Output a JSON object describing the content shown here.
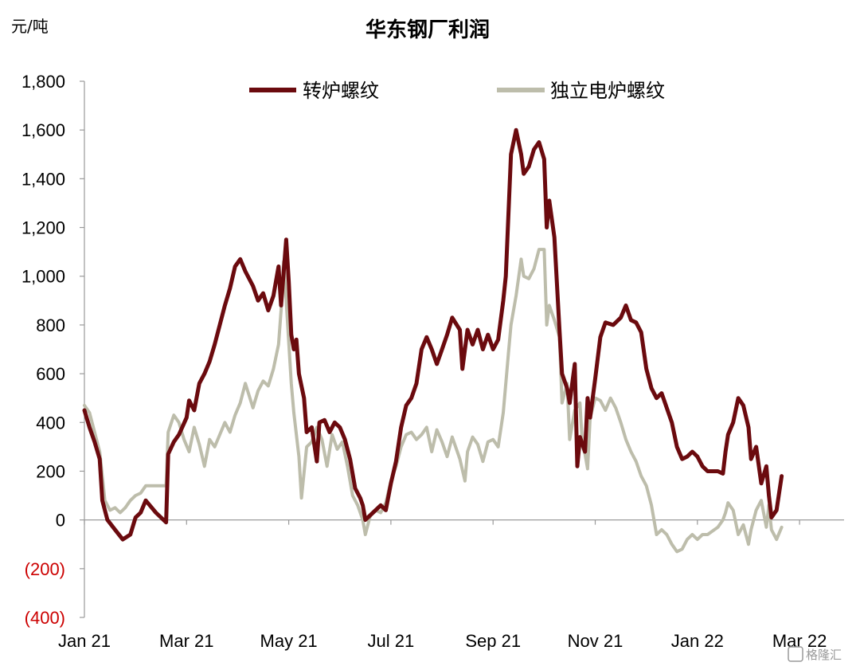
{
  "chart_data": {
    "type": "line",
    "title": "华东钢厂利润",
    "unit_label": "元/吨",
    "ylim": [
      -400,
      1800
    ],
    "yticks": [
      {
        "value": 1800,
        "label": "1,800"
      },
      {
        "value": 1600,
        "label": "1,600"
      },
      {
        "value": 1400,
        "label": "1,400"
      },
      {
        "value": 1200,
        "label": "1,200"
      },
      {
        "value": 1000,
        "label": "1,000"
      },
      {
        "value": 800,
        "label": "800"
      },
      {
        "value": 600,
        "label": "600"
      },
      {
        "value": 400,
        "label": "400"
      },
      {
        "value": 200,
        "label": "200"
      },
      {
        "value": 0,
        "label": "0"
      },
      {
        "value": -200,
        "label": "(200)"
      },
      {
        "value": -400,
        "label": "(400)"
      }
    ],
    "xticks": [
      "Jan 21",
      "Mar 21",
      "May 21",
      "Jul 21",
      "Sep 21",
      "Nov 21",
      "Jan 22",
      "Mar 22"
    ],
    "legend_position": "top",
    "series": [
      {
        "name": "转炉螺纹",
        "color": "#6b0a0e",
        "points": [
          [
            0.0,
            450
          ],
          [
            0.1,
            380
          ],
          [
            0.2,
            320
          ],
          [
            0.3,
            250
          ],
          [
            0.35,
            80
          ],
          [
            0.45,
            0
          ],
          [
            0.6,
            -40
          ],
          [
            0.75,
            -80
          ],
          [
            0.9,
            -60
          ],
          [
            1.0,
            10
          ],
          [
            1.1,
            30
          ],
          [
            1.2,
            80
          ],
          [
            1.4,
            30
          ],
          [
            1.6,
            -10
          ],
          [
            1.64,
            270
          ],
          [
            1.75,
            320
          ],
          [
            1.85,
            350
          ],
          [
            2.0,
            420
          ],
          [
            2.05,
            490
          ],
          [
            2.15,
            450
          ],
          [
            2.25,
            560
          ],
          [
            2.35,
            600
          ],
          [
            2.45,
            650
          ],
          [
            2.55,
            720
          ],
          [
            2.65,
            800
          ],
          [
            2.75,
            880
          ],
          [
            2.85,
            950
          ],
          [
            2.95,
            1040
          ],
          [
            3.05,
            1070
          ],
          [
            3.15,
            1020
          ],
          [
            3.3,
            960
          ],
          [
            3.4,
            900
          ],
          [
            3.5,
            930
          ],
          [
            3.6,
            860
          ],
          [
            3.7,
            920
          ],
          [
            3.8,
            1040
          ],
          [
            3.85,
            880
          ],
          [
            3.95,
            1150
          ],
          [
            4.0,
            980
          ],
          [
            4.05,
            760
          ],
          [
            4.1,
            700
          ],
          [
            4.15,
            740
          ],
          [
            4.2,
            600
          ],
          [
            4.3,
            500
          ],
          [
            4.35,
            360
          ],
          [
            4.45,
            380
          ],
          [
            4.55,
            240
          ],
          [
            4.6,
            400
          ],
          [
            4.7,
            410
          ],
          [
            4.8,
            360
          ],
          [
            4.9,
            400
          ],
          [
            5.0,
            380
          ],
          [
            5.1,
            330
          ],
          [
            5.2,
            250
          ],
          [
            5.3,
            130
          ],
          [
            5.4,
            90
          ],
          [
            5.45,
            60
          ],
          [
            5.5,
            0
          ],
          [
            5.65,
            30
          ],
          [
            5.8,
            60
          ],
          [
            5.9,
            40
          ],
          [
            6.0,
            150
          ],
          [
            6.1,
            240
          ],
          [
            6.2,
            380
          ],
          [
            6.3,
            470
          ],
          [
            6.4,
            500
          ],
          [
            6.5,
            560
          ],
          [
            6.6,
            700
          ],
          [
            6.7,
            750
          ],
          [
            6.8,
            700
          ],
          [
            6.9,
            640
          ],
          [
            7.0,
            700
          ],
          [
            7.1,
            760
          ],
          [
            7.2,
            830
          ],
          [
            7.35,
            780
          ],
          [
            7.4,
            620
          ],
          [
            7.5,
            780
          ],
          [
            7.6,
            720
          ],
          [
            7.7,
            780
          ],
          [
            7.8,
            700
          ],
          [
            7.9,
            760
          ],
          [
            8.0,
            700
          ],
          [
            8.1,
            740
          ],
          [
            8.2,
            900
          ],
          [
            8.25,
            1000
          ],
          [
            8.35,
            1500
          ],
          [
            8.45,
            1600
          ],
          [
            8.55,
            1500
          ],
          [
            8.6,
            1420
          ],
          [
            8.7,
            1450
          ],
          [
            8.8,
            1520
          ],
          [
            8.9,
            1550
          ],
          [
            9.0,
            1480
          ],
          [
            9.05,
            1200
          ],
          [
            9.1,
            1310
          ],
          [
            9.2,
            1160
          ],
          [
            9.3,
            780
          ],
          [
            9.35,
            600
          ],
          [
            9.45,
            540
          ],
          [
            9.5,
            480
          ],
          [
            9.6,
            640
          ],
          [
            9.65,
            220
          ],
          [
            9.7,
            340
          ],
          [
            9.8,
            280
          ],
          [
            9.85,
            500
          ],
          [
            9.9,
            420
          ],
          [
            10.0,
            580
          ],
          [
            10.1,
            750
          ],
          [
            10.2,
            810
          ],
          [
            10.35,
            800
          ],
          [
            10.5,
            830
          ],
          [
            10.6,
            880
          ],
          [
            10.7,
            820
          ],
          [
            10.8,
            810
          ],
          [
            10.9,
            770
          ],
          [
            11.0,
            620
          ],
          [
            11.1,
            540
          ],
          [
            11.2,
            500
          ],
          [
            11.3,
            520
          ],
          [
            11.4,
            460
          ],
          [
            11.5,
            400
          ],
          [
            11.6,
            300
          ],
          [
            11.7,
            250
          ],
          [
            11.8,
            260
          ],
          [
            11.9,
            280
          ],
          [
            12.0,
            260
          ],
          [
            12.1,
            220
          ],
          [
            12.2,
            200
          ],
          [
            12.4,
            200
          ],
          [
            12.5,
            190
          ],
          [
            12.55,
            280
          ],
          [
            12.6,
            350
          ],
          [
            12.7,
            400
          ],
          [
            12.8,
            500
          ],
          [
            12.9,
            470
          ],
          [
            13.0,
            380
          ],
          [
            13.05,
            250
          ],
          [
            13.15,
            300
          ],
          [
            13.25,
            150
          ],
          [
            13.35,
            220
          ],
          [
            13.4,
            100
          ],
          [
            13.45,
            10
          ],
          [
            13.55,
            40
          ],
          [
            13.65,
            180
          ]
        ]
      },
      {
        "name": "独立电炉螺纹",
        "color": "#bdbdab",
        "points": [
          [
            0.0,
            470
          ],
          [
            0.1,
            440
          ],
          [
            0.2,
            360
          ],
          [
            0.3,
            280
          ],
          [
            0.4,
            80
          ],
          [
            0.5,
            40
          ],
          [
            0.6,
            50
          ],
          [
            0.7,
            30
          ],
          [
            0.8,
            50
          ],
          [
            0.9,
            80
          ],
          [
            1.0,
            100
          ],
          [
            1.1,
            110
          ],
          [
            1.2,
            140
          ],
          [
            1.4,
            140
          ],
          [
            1.6,
            140
          ],
          [
            1.64,
            360
          ],
          [
            1.75,
            430
          ],
          [
            1.85,
            400
          ],
          [
            1.95,
            330
          ],
          [
            2.05,
            280
          ],
          [
            2.15,
            380
          ],
          [
            2.25,
            310
          ],
          [
            2.35,
            220
          ],
          [
            2.45,
            330
          ],
          [
            2.55,
            300
          ],
          [
            2.65,
            350
          ],
          [
            2.75,
            400
          ],
          [
            2.85,
            360
          ],
          [
            2.95,
            430
          ],
          [
            3.05,
            480
          ],
          [
            3.15,
            560
          ],
          [
            3.3,
            460
          ],
          [
            3.4,
            530
          ],
          [
            3.5,
            570
          ],
          [
            3.6,
            550
          ],
          [
            3.7,
            620
          ],
          [
            3.8,
            720
          ],
          [
            3.85,
            860
          ],
          [
            3.9,
            1060
          ],
          [
            3.95,
            900
          ],
          [
            4.05,
            560
          ],
          [
            4.1,
            440
          ],
          [
            4.2,
            260
          ],
          [
            4.25,
            90
          ],
          [
            4.35,
            300
          ],
          [
            4.45,
            320
          ],
          [
            4.55,
            380
          ],
          [
            4.65,
            330
          ],
          [
            4.75,
            220
          ],
          [
            4.85,
            350
          ],
          [
            4.95,
            290
          ],
          [
            5.05,
            320
          ],
          [
            5.15,
            220
          ],
          [
            5.25,
            100
          ],
          [
            5.35,
            60
          ],
          [
            5.45,
            0
          ],
          [
            5.5,
            -60
          ],
          [
            5.6,
            20
          ],
          [
            5.7,
            40
          ],
          [
            5.8,
            30
          ],
          [
            5.9,
            70
          ],
          [
            6.0,
            160
          ],
          [
            6.1,
            220
          ],
          [
            6.2,
            300
          ],
          [
            6.3,
            350
          ],
          [
            6.4,
            360
          ],
          [
            6.5,
            330
          ],
          [
            6.6,
            350
          ],
          [
            6.7,
            380
          ],
          [
            6.8,
            280
          ],
          [
            6.9,
            370
          ],
          [
            7.0,
            320
          ],
          [
            7.1,
            260
          ],
          [
            7.2,
            340
          ],
          [
            7.35,
            250
          ],
          [
            7.45,
            160
          ],
          [
            7.5,
            280
          ],
          [
            7.6,
            340
          ],
          [
            7.7,
            310
          ],
          [
            7.8,
            240
          ],
          [
            7.9,
            320
          ],
          [
            8.0,
            330
          ],
          [
            8.1,
            300
          ],
          [
            8.2,
            440
          ],
          [
            8.3,
            680
          ],
          [
            8.35,
            800
          ],
          [
            8.45,
            920
          ],
          [
            8.55,
            1070
          ],
          [
            8.6,
            1000
          ],
          [
            8.7,
            990
          ],
          [
            8.8,
            1030
          ],
          [
            8.9,
            1110
          ],
          [
            9.0,
            1110
          ],
          [
            9.05,
            800
          ],
          [
            9.1,
            880
          ],
          [
            9.2,
            820
          ],
          [
            9.3,
            750
          ],
          [
            9.35,
            480
          ],
          [
            9.45,
            560
          ],
          [
            9.5,
            330
          ],
          [
            9.6,
            450
          ],
          [
            9.7,
            480
          ],
          [
            9.75,
            300
          ],
          [
            9.8,
            270
          ],
          [
            9.85,
            210
          ],
          [
            9.9,
            420
          ],
          [
            10.0,
            500
          ],
          [
            10.1,
            490
          ],
          [
            10.2,
            450
          ],
          [
            10.3,
            500
          ],
          [
            10.4,
            460
          ],
          [
            10.5,
            400
          ],
          [
            10.6,
            330
          ],
          [
            10.7,
            280
          ],
          [
            10.8,
            240
          ],
          [
            10.9,
            180
          ],
          [
            11.0,
            140
          ],
          [
            11.1,
            60
          ],
          [
            11.2,
            -60
          ],
          [
            11.3,
            -40
          ],
          [
            11.4,
            -60
          ],
          [
            11.5,
            -100
          ],
          [
            11.6,
            -130
          ],
          [
            11.7,
            -120
          ],
          [
            11.8,
            -80
          ],
          [
            11.9,
            -60
          ],
          [
            12.0,
            -80
          ],
          [
            12.1,
            -60
          ],
          [
            12.2,
            -60
          ],
          [
            12.4,
            -30
          ],
          [
            12.5,
            0
          ],
          [
            12.55,
            30
          ],
          [
            12.6,
            70
          ],
          [
            12.7,
            40
          ],
          [
            12.8,
            -60
          ],
          [
            12.9,
            -20
          ],
          [
            13.0,
            -100
          ],
          [
            13.05,
            -40
          ],
          [
            13.15,
            40
          ],
          [
            13.25,
            80
          ],
          [
            13.35,
            -30
          ],
          [
            13.4,
            60
          ],
          [
            13.45,
            -40
          ],
          [
            13.55,
            -80
          ],
          [
            13.65,
            -30
          ]
        ]
      }
    ]
  },
  "watermark": "格隆汇"
}
